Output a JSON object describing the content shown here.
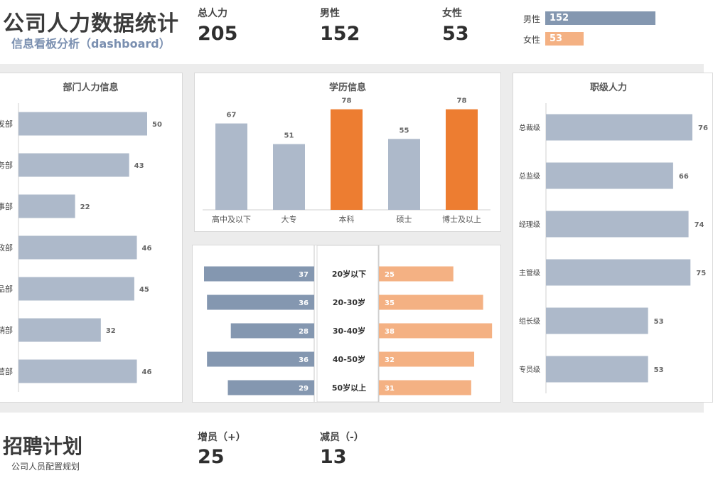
{
  "header": {
    "title": "公司人力数据统计",
    "subtitle": "信息看板分析（dashboard）"
  },
  "kpis": {
    "total_label": "总人力",
    "total_value": "205",
    "male_label": "男性",
    "male_value": "152",
    "female_label": "女性",
    "female_value": "53"
  },
  "gender_mini": {
    "male_label": "男性",
    "male_value": 152,
    "female_label": "女性",
    "female_value": 53,
    "male_color": "#8497b0",
    "female_color": "#f4b183"
  },
  "colors": {
    "bar_gray": "#adb9ca",
    "highlight": "#ed7d31",
    "pyramid_left": "#8497b0",
    "pyramid_right": "#f4b183"
  },
  "chart_data": [
    {
      "type": "bar",
      "orientation": "horizontal",
      "title": "部门人力信息",
      "categories": [
        "发部",
        "务部",
        "事部",
        "政部",
        "品部",
        "销部",
        "营部"
      ],
      "values": [
        50,
        43,
        22,
        46,
        45,
        32,
        46
      ],
      "xlim": [
        0,
        55
      ]
    },
    {
      "type": "bar",
      "title": "学历信息",
      "categories": [
        "高中及以下",
        "大专",
        "本科",
        "硕士",
        "博士及以上"
      ],
      "values": [
        67,
        51,
        78,
        55,
        78
      ],
      "highlight": [
        false,
        false,
        true,
        false,
        true
      ],
      "ylim": [
        0,
        80
      ]
    },
    {
      "type": "bar",
      "orientation": "horizontal",
      "title": "职级人力",
      "categories": [
        "总裁级",
        "总监级",
        "经理级",
        "主管级",
        "组长级",
        "专员级"
      ],
      "values": [
        76,
        66,
        74,
        75,
        53,
        53
      ],
      "xlim": [
        0,
        80
      ]
    },
    {
      "type": "bar",
      "orientation": "diverging",
      "title": "",
      "categories": [
        "20岁以下",
        "20-30岁",
        "30-40岁",
        "40-50岁",
        "50岁以上"
      ],
      "series": [
        {
          "values": [
            37,
            36,
            28,
            36,
            29
          ]
        },
        {
          "values": [
            25,
            35,
            38,
            32,
            31
          ]
        }
      ],
      "xlim": [
        0,
        40
      ]
    }
  ],
  "recruit": {
    "title": "招聘计划",
    "subtitle": "公司人员配置规划",
    "add_label": "增员（+）",
    "add_value": "25",
    "reduce_label": "减员（-）",
    "reduce_value": "13"
  }
}
